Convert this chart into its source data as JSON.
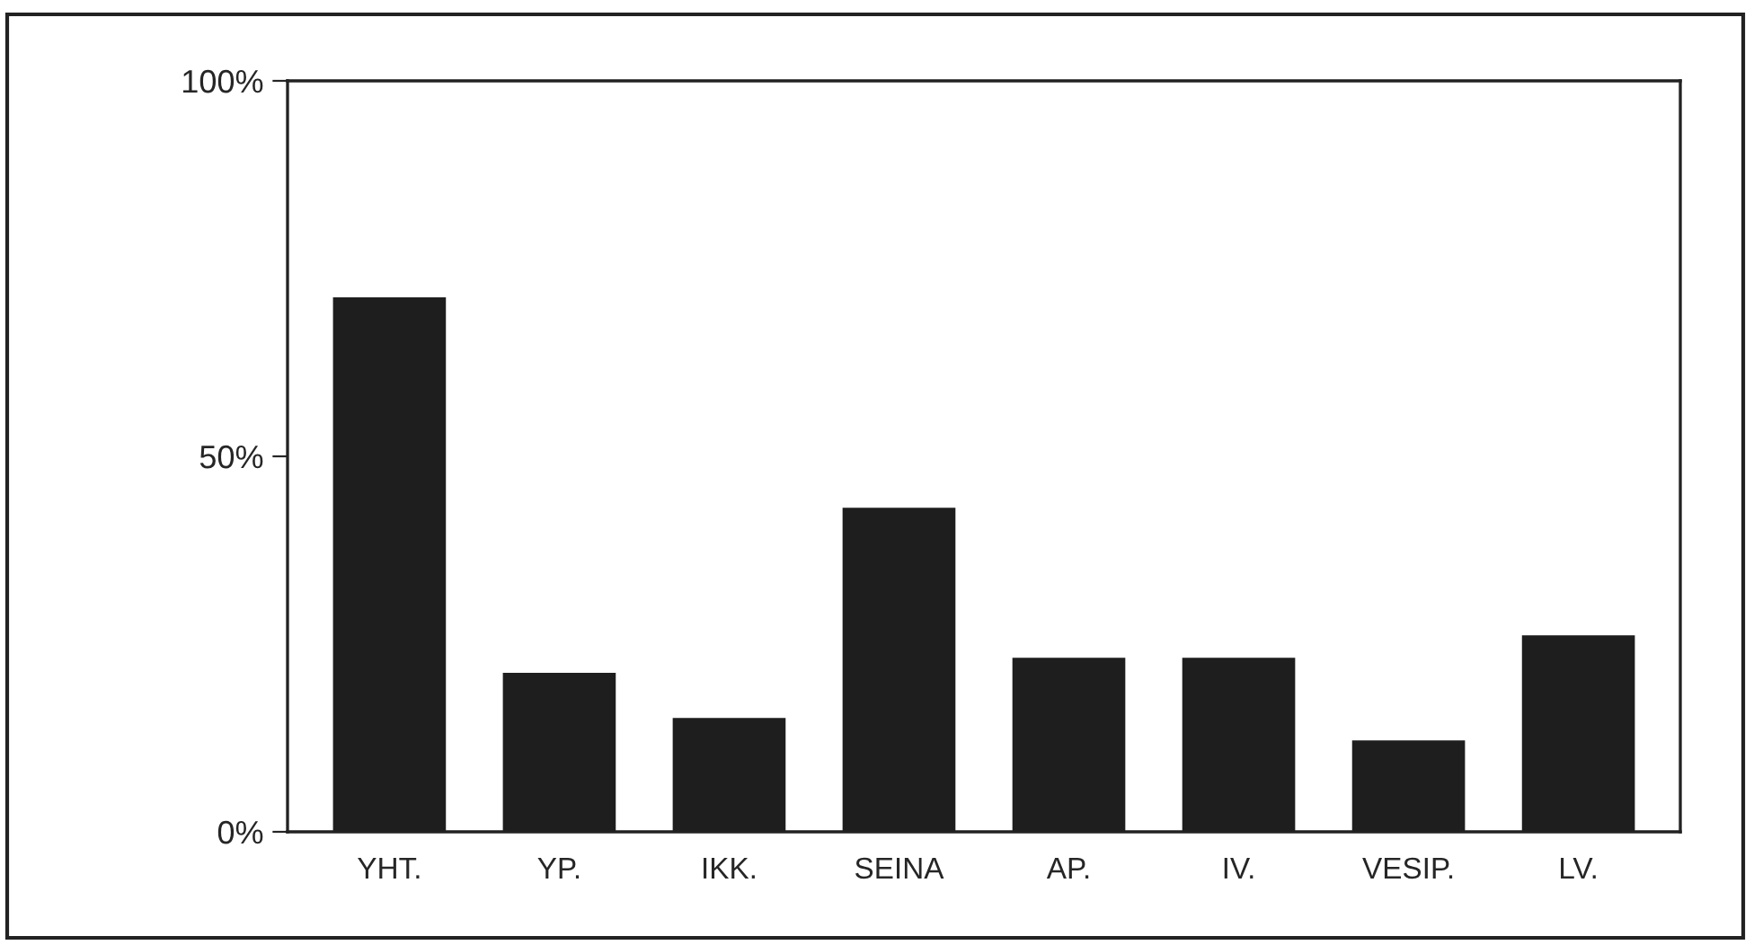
{
  "chart_data": {
    "type": "bar",
    "categories": [
      "YHT.",
      "YP.",
      "IKK.",
      "SEINA",
      "AP.",
      "IV.",
      "VESIP.",
      "LV."
    ],
    "values": [
      71,
      21,
      15,
      43,
      23,
      23,
      12,
      26
    ],
    "color": "#1e1e1e",
    "ylim": [
      0,
      100
    ],
    "yticks": [
      {
        "value": 0,
        "label": "0%"
      },
      {
        "value": 50,
        "label": "50%"
      },
      {
        "value": 100,
        "label": "100%"
      }
    ],
    "grid": false
  }
}
